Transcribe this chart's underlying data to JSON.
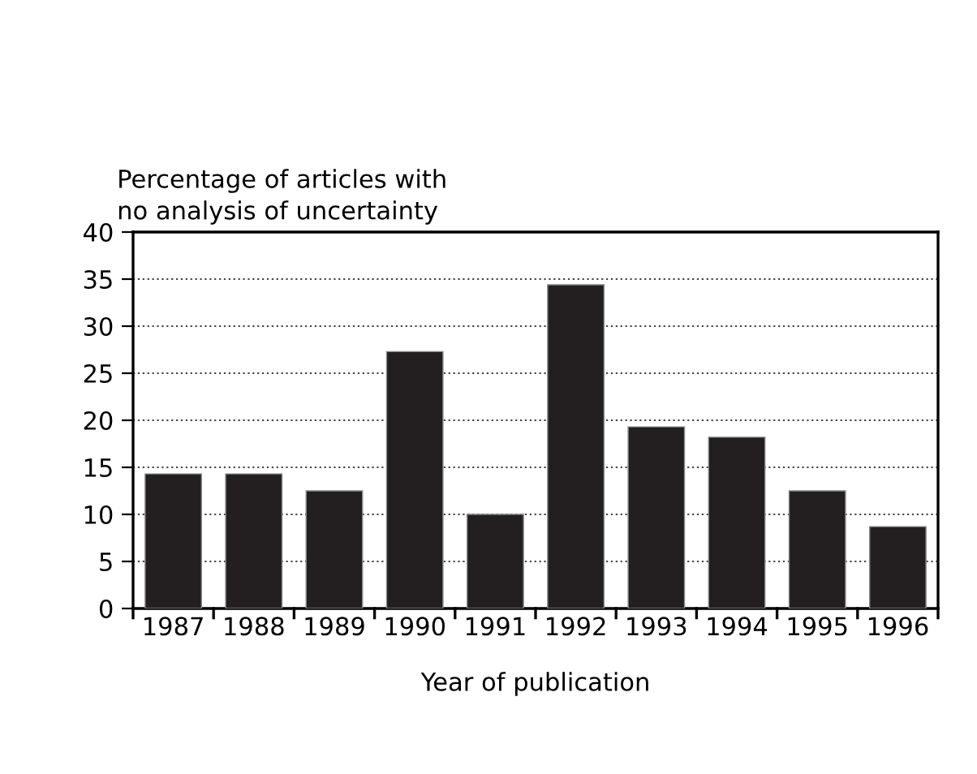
{
  "chart_data": {
    "type": "bar",
    "ylabel": "Percentage of articles with\nno analysis of uncertainty",
    "xlabel": "Year of publication",
    "categories": [
      "1987",
      "1988",
      "1989",
      "1990",
      "1991",
      "1992",
      "1993",
      "1994",
      "1995",
      "1996"
    ],
    "values": [
      14.3,
      14.3,
      12.5,
      27.3,
      10.0,
      34.4,
      19.3,
      18.2,
      12.5,
      8.7
    ],
    "color": "#231f20",
    "ylim": [
      0,
      40
    ],
    "yticks": [
      0,
      5,
      10,
      15,
      20,
      25,
      30,
      35,
      40
    ],
    "grid": "y"
  }
}
